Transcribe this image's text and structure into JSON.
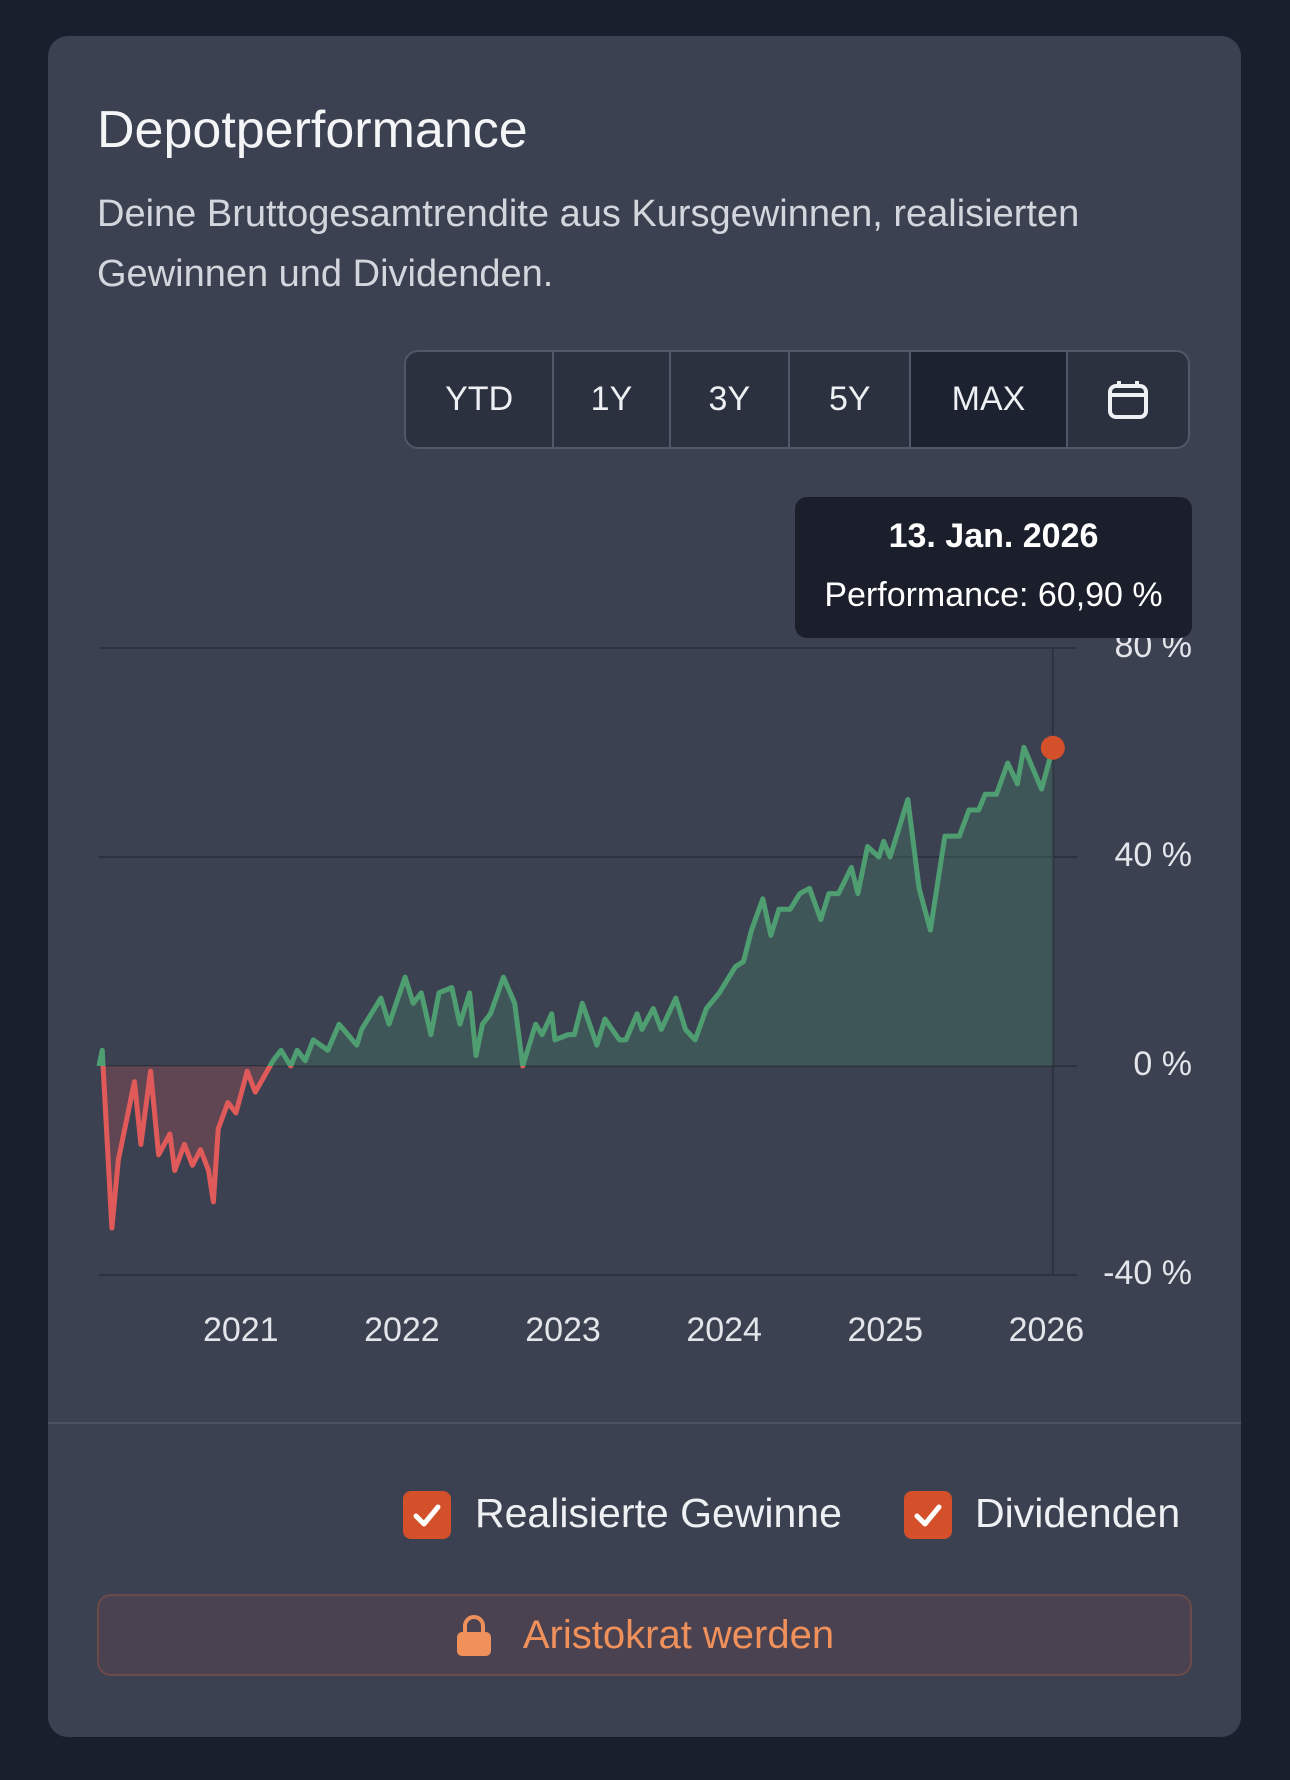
{
  "header": {
    "title": "Depotperformance",
    "subtitle": "Deine Bruttogesamtrendite aus Kursgewinnen, realisierten Gewinnen und Dividenden."
  },
  "range_buttons": {
    "items": [
      "YTD",
      "1Y",
      "3Y",
      "5Y",
      "MAX"
    ],
    "active": "MAX"
  },
  "tooltip": {
    "date": "13. Jan. 2026",
    "text": "Performance: 60,90 %"
  },
  "chart_data": {
    "type": "area",
    "color_positive": "#4e9e72",
    "color_negative": "#e05a5a",
    "marker_color": "#d4502a",
    "grid": true,
    "x": [
      2020.12,
      2020.14,
      2020.2,
      2020.24,
      2020.34,
      2020.38,
      2020.44,
      2020.49,
      2020.56,
      2020.59,
      2020.65,
      2020.7,
      2020.75,
      2020.8,
      2020.83,
      2020.86,
      2020.92,
      2020.97,
      2021.04,
      2021.09,
      2021.2,
      2021.25,
      2021.31,
      2021.35,
      2021.4,
      2021.45,
      2021.54,
      2021.61,
      2021.72,
      2021.75,
      2021.87,
      2021.92,
      2022.02,
      2022.07,
      2022.12,
      2022.18,
      2022.23,
      2022.31,
      2022.36,
      2022.42,
      2022.46,
      2022.5,
      2022.55,
      2022.63,
      2022.7,
      2022.75,
      2022.83,
      2022.87,
      2022.93,
      2022.95,
      2023.03,
      2023.07,
      2023.12,
      2023.21,
      2023.26,
      2023.35,
      2023.39,
      2023.46,
      2023.49,
      2023.56,
      2023.61,
      2023.7,
      2023.76,
      2023.82,
      2023.89,
      2023.97,
      2024.03,
      2024.07,
      2024.12,
      2024.17,
      2024.24,
      2024.29,
      2024.34,
      2024.41,
      2024.47,
      2024.53,
      2024.6,
      2024.65,
      2024.71,
      2024.79,
      2024.83,
      2024.89,
      2024.96,
      2024.99,
      2025.03,
      2025.14,
      2025.21,
      2025.28,
      2025.37,
      2025.46,
      2025.52,
      2025.58,
      2025.62,
      2025.69,
      2025.76,
      2025.82,
      2025.86,
      2025.97,
      2026.04
    ],
    "values": [
      0,
      3,
      -31,
      -18,
      -3,
      -15,
      -1,
      -17,
      -13,
      -20,
      -15,
      -19,
      -16,
      -20,
      -26,
      -12,
      -7,
      -9,
      -1,
      -5,
      1,
      3,
      0,
      3,
      1,
      5,
      3,
      8,
      4,
      7,
      13,
      8,
      17,
      12,
      14,
      6,
      14,
      15,
      8,
      14,
      2,
      8,
      10,
      17,
      12,
      0,
      8,
      6,
      10,
      5,
      6,
      6,
      12,
      4,
      9,
      5,
      5,
      10,
      7,
      11,
      7,
      13,
      7,
      5,
      11,
      14,
      17,
      19,
      20,
      26,
      32,
      25,
      30,
      30,
      33,
      34,
      28,
      33,
      33,
      38,
      33,
      42,
      40,
      43,
      40,
      51,
      34,
      26,
      44,
      44,
      49,
      49,
      52,
      52,
      58,
      54,
      61,
      53,
      60.9
    ],
    "xlim": [
      2020.12,
      2026.19
    ],
    "ylim": [
      -40,
      80
    ],
    "xticks": [
      2021,
      2022,
      2023,
      2024,
      2025,
      2026
    ],
    "yticks": [
      {
        "value": -40,
        "label": "-40 %"
      },
      {
        "value": 0,
        "label": "0 %"
      },
      {
        "value": 40,
        "label": "40 %"
      },
      {
        "value": 80,
        "label": "80 %"
      }
    ]
  },
  "options": {
    "items": [
      "Realisierte Gewinne",
      "Dividenden"
    ]
  },
  "cta": {
    "label": "Aristokrat werden"
  }
}
